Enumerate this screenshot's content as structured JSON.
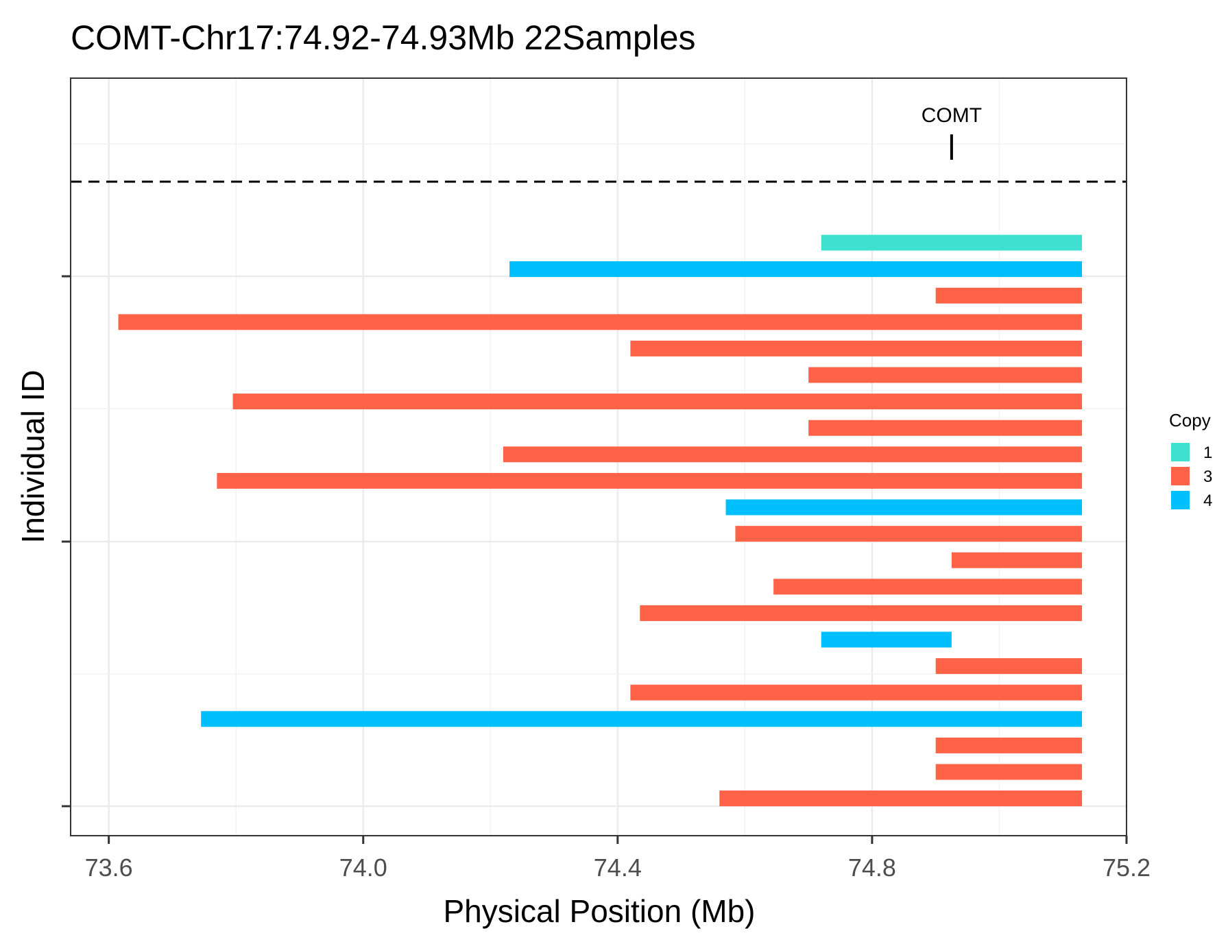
{
  "chart_data": {
    "type": "bar",
    "orientation": "horizontal-range",
    "title": "COMT-Chr17:74.92-74.93Mb 22Samples",
    "xlabel": "Physical Position (Mb)",
    "ylabel": "Individual ID",
    "xlim": [
      73.54,
      75.2
    ],
    "x_ticks": [
      "73.6",
      "74.0",
      "74.4",
      "74.8",
      "75.2"
    ],
    "grid": true,
    "legend": {
      "title": "Copy",
      "position": "right",
      "entries": [
        {
          "label": "1",
          "color": "#40E0D0"
        },
        {
          "label": "3",
          "color": "#FF6347"
        },
        {
          "label": "4",
          "color": "#00BFFF"
        }
      ]
    },
    "gene_marker": {
      "label": "COMT",
      "position": 74.925
    },
    "series": [
      {
        "start": 74.72,
        "end": 75.13,
        "copy": "1"
      },
      {
        "start": 74.23,
        "end": 75.13,
        "copy": "4"
      },
      {
        "start": 74.9,
        "end": 75.13,
        "copy": "3"
      },
      {
        "start": 73.615,
        "end": 75.13,
        "copy": "3"
      },
      {
        "start": 74.42,
        "end": 75.13,
        "copy": "3"
      },
      {
        "start": 74.7,
        "end": 75.13,
        "copy": "3"
      },
      {
        "start": 73.795,
        "end": 75.13,
        "copy": "3"
      },
      {
        "start": 74.7,
        "end": 75.13,
        "copy": "3"
      },
      {
        "start": 74.22,
        "end": 75.13,
        "copy": "3"
      },
      {
        "start": 73.77,
        "end": 75.13,
        "copy": "3"
      },
      {
        "start": 74.57,
        "end": 75.13,
        "copy": "4"
      },
      {
        "start": 74.585,
        "end": 75.13,
        "copy": "3"
      },
      {
        "start": 74.925,
        "end": 75.13,
        "copy": "3"
      },
      {
        "start": 74.645,
        "end": 75.13,
        "copy": "3"
      },
      {
        "start": 74.435,
        "end": 75.13,
        "copy": "3"
      },
      {
        "start": 74.72,
        "end": 74.925,
        "copy": "4"
      },
      {
        "start": 74.9,
        "end": 75.13,
        "copy": "3"
      },
      {
        "start": 74.42,
        "end": 75.13,
        "copy": "3"
      },
      {
        "start": 73.745,
        "end": 75.13,
        "copy": "4"
      },
      {
        "start": 74.9,
        "end": 75.13,
        "copy": "3"
      },
      {
        "start": 74.9,
        "end": 75.13,
        "copy": "3"
      },
      {
        "start": 74.56,
        "end": 75.13,
        "copy": "3"
      }
    ]
  }
}
